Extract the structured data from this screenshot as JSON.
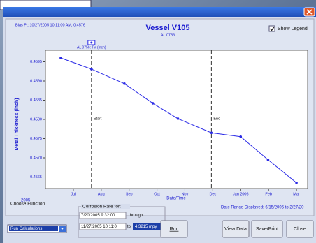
{
  "header": {
    "bias_point": "Bias Pt: 10/27/2005 10:11:00 AM, 0.4576"
  },
  "show_legend": {
    "label": "Show Legend",
    "checked": true
  },
  "chart_data": {
    "type": "line",
    "title": "Vessel V105",
    "subtitle": "AL 0756",
    "x_label": "Date/Time",
    "y_label": "Metal Thickness (inch)",
    "year_label": "2005",
    "date_range": "Date Range Displayed: 6/15/2005 to 2/27/20",
    "x": [
      6.55,
      7.65,
      8.83,
      9.85,
      10.75,
      11.95,
      13.0,
      13.98,
      15.0
    ],
    "series": [
      {
        "name": "AL 0756: TV (inch)",
        "color": "#2b2be6",
        "values": [
          0.4596,
          0.45931,
          0.45893,
          0.45842,
          0.45802,
          0.45765,
          0.45755,
          0.45695,
          0.45635
        ]
      }
    ],
    "xlim": [
      6.0,
      15.4
    ],
    "ylim": [
      0.4562,
      0.4598
    ],
    "xticks": [
      {
        "value": 7,
        "label": "Jul"
      },
      {
        "value": 8,
        "label": "Aug"
      },
      {
        "value": 9,
        "label": "Sep"
      },
      {
        "value": 10,
        "label": "Oct"
      },
      {
        "value": 11,
        "label": "Nov"
      },
      {
        "value": 12,
        "label": "Dec"
      },
      {
        "value": 13,
        "label": "Jan 2006"
      },
      {
        "value": 14,
        "label": "Feb"
      },
      {
        "value": 15,
        "label": "Mar"
      }
    ],
    "yticks": [
      0.4565,
      {
        "value": 0.457,
        "label": "0.4570"
      },
      0.4575,
      {
        "value": 0.458,
        "label": "0.4580"
      },
      0.4585,
      {
        "value": 0.459,
        "label": "0.4590"
      },
      0.4595
    ],
    "markers": [
      {
        "label": "Start",
        "x": 7.65
      },
      {
        "label": "End",
        "x": 11.95
      }
    ],
    "grid": false
  },
  "controls": {
    "choose_function": "Choose Function",
    "function_value": "Run Calculations",
    "corrosion_title": "Corrosion Rate for:",
    "from": "7/20/2005 9:32:00",
    "through": "through",
    "to_date": "11/27/2005 10:11:0",
    "to": "to",
    "rate": "4.3215 mpy",
    "run": "Run",
    "view_data": "View Data",
    "save_print": "Save/Print",
    "close": "Close"
  }
}
